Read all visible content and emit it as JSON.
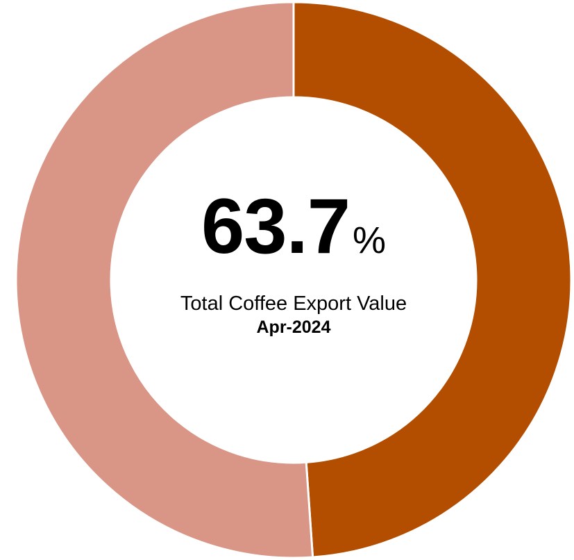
{
  "chart_data": {
    "type": "pie",
    "categories": [
      "",
      ""
    ],
    "values": [
      48.9,
      51.1
    ],
    "colors": [
      "#B34D00",
      "#D99585"
    ],
    "center_value": "63.7",
    "center_unit": "%",
    "center_label": "Total Coffee Export Value",
    "center_period": "Apr-2024"
  }
}
